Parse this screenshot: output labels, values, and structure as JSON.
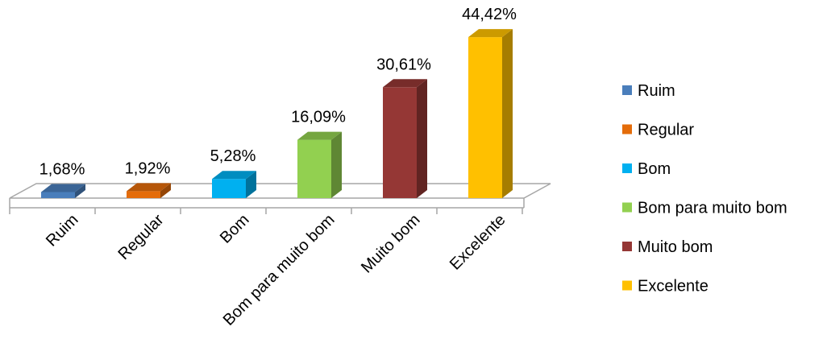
{
  "chart_data": {
    "type": "bar",
    "style": "3d-column",
    "categories": [
      "Ruim",
      "Regular",
      "Bom",
      "Bom para muito bom",
      "Muito bom",
      "Excelente"
    ],
    "values": [
      1.68,
      1.92,
      5.28,
      16.09,
      30.61,
      44.42
    ],
    "value_labels": [
      "1,68%",
      "1,92%",
      "5,28%",
      "16,09%",
      "30,61%",
      "44,42%"
    ],
    "colors": [
      "#4a7ebb",
      "#e46c0a",
      "#00b0f0",
      "#92d050",
      "#953735",
      "#ffc000"
    ],
    "legend": {
      "position": "right",
      "entries": [
        "Ruim",
        "Regular",
        "Bom",
        "Bom para muito bom",
        "Muito bom",
        "Excelente"
      ]
    },
    "grid": false,
    "axis_line_color": "#a6a6a6",
    "text_color": "#000000"
  }
}
